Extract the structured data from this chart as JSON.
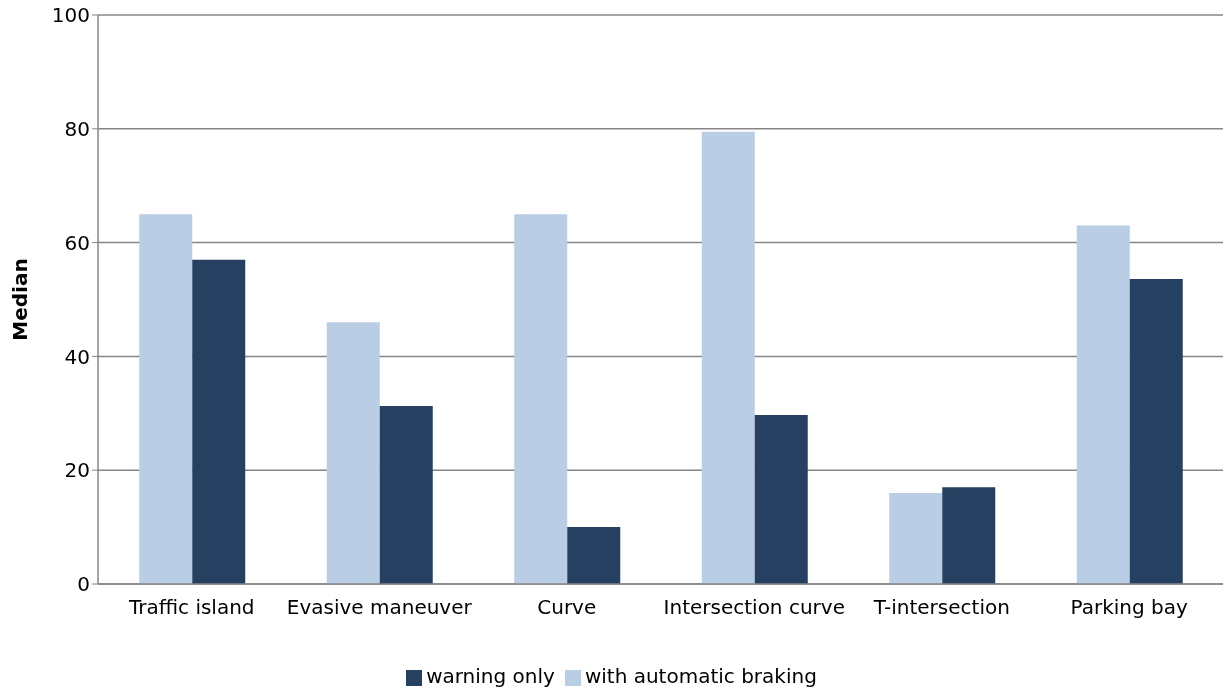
{
  "chart_data": {
    "type": "bar",
    "ylabel": "Median",
    "categories": [
      "Traffic island",
      "Evasive maneuver",
      "Curve",
      "Intersection curve",
      "T-intersection",
      "Parking bay"
    ],
    "series": [
      {
        "name": "with automatic braking",
        "color": "#b9cde5",
        "values": [
          65,
          46,
          65,
          79.5,
          16,
          63
        ]
      },
      {
        "name": "warning only",
        "color": "#254061",
        "values": [
          57,
          31.3,
          10,
          29.7,
          17,
          53.6
        ]
      }
    ],
    "ylim": [
      0,
      100
    ],
    "yticks": [
      0,
      20,
      40,
      60,
      80,
      100
    ],
    "grid": "y",
    "legend": "bottom"
  }
}
